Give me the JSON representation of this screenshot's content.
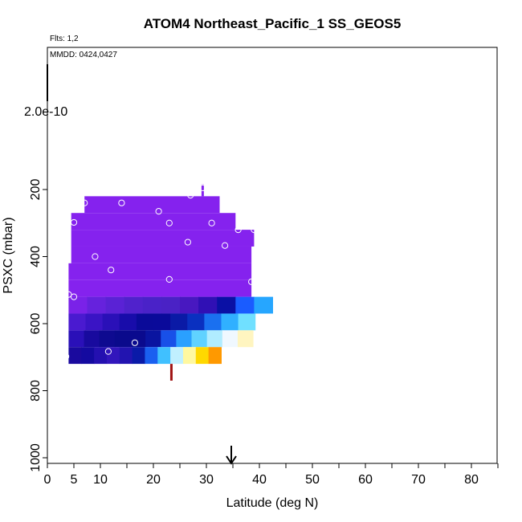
{
  "chart_data": {
    "type": "heatmap",
    "title": "ATOM4 Northeast_Pacific_1 SS_GEOS5",
    "flights_note": "Flts: 1,2",
    "dates_note": "MMDD: 0424,0427",
    "scale_label": "2.0e-10",
    "xlabel": "Latitude (deg N)",
    "ylabel": "PSXC (mbar)",
    "xlim": [
      0,
      85
    ],
    "ylim": [
      1010,
      0
    ],
    "x_ticks": [
      0,
      5,
      10,
      20,
      30,
      40,
      50,
      60,
      70,
      80
    ],
    "x_minor_ticks": [
      15,
      25,
      35,
      45,
      55,
      65,
      75,
      85
    ],
    "y_ticks": [
      200,
      400,
      600,
      800,
      1000
    ],
    "arrow_latitude": 34.7,
    "bands": [
      {
        "p_top": 220,
        "p_bot": 270,
        "lat_start": 7,
        "lat_step": 1,
        "colors": [
          "#8522ee"
        ],
        "lat_end": 32.5
      },
      {
        "p_top": 270,
        "p_bot": 320,
        "lat_start": 4.5,
        "lat_step": 1,
        "colors": [
          "#8522ee"
        ],
        "lat_end": 35.5
      },
      {
        "p_top": 320,
        "p_bot": 370,
        "lat_start": 4.5,
        "lat_step": 1,
        "colors": [
          "#8522ee"
        ],
        "lat_end": 39
      },
      {
        "p_top": 370,
        "p_bot": 420,
        "lat_start": 4.5,
        "lat_step": 1,
        "colors": [
          "#8522ee"
        ],
        "lat_end": 38.5
      },
      {
        "p_top": 420,
        "p_bot": 470,
        "lat_start": 4,
        "lat_step": 1,
        "colors": [
          "#8522ee"
        ],
        "lat_end": 38.5
      },
      {
        "p_top": 470,
        "p_bot": 520,
        "lat_start": 4,
        "lat_step": 1,
        "colors": [
          "#8522ee"
        ],
        "lat_end": 38.5
      },
      {
        "p_top": 520,
        "p_bot": 570,
        "lat_start": 4,
        "lat_step": 3.5,
        "colors": [
          "#7a22e8",
          "#6622dd",
          "#5a22d5",
          "#5022cc",
          "#4a22c8",
          "#4a22c5",
          "#4818c0",
          "#3010b5",
          "#0a10a5",
          "#1a5cff",
          "#26a6ff"
        ]
      },
      {
        "p_top": 570,
        "p_bot": 620,
        "lat_start": 4,
        "lat_step": 3.2,
        "colors": [
          "#4a1ad0",
          "#3a14c5",
          "#2a10b8",
          "#180caa",
          "#0a0a99",
          "#0a0a9a",
          "#0a1aa6",
          "#0a30c0",
          "#1a70f0",
          "#30b0ff",
          "#70e0ff"
        ]
      },
      {
        "p_top": 620,
        "p_bot": 670,
        "lat_start": 4,
        "lat_step": 2.9,
        "colors": [
          "#2a10b8",
          "#180a9e",
          "#0e0a90",
          "#0a0a8c",
          "#0a0a8e",
          "#0a14a0",
          "#1850e8",
          "#2aa0ff",
          "#60d2ff",
          "#b0ecff",
          "#f0f8ff",
          "#fff5c0"
        ]
      },
      {
        "p_top": 670,
        "p_bot": 720,
        "lat_start": 4,
        "lat_step": 2.4,
        "colors": [
          "#1a0a9e",
          "#140aa0",
          "#2410b0",
          "#3216bc",
          "#2214b0",
          "#0a1aa8",
          "#1a60f0",
          "#40c0ff",
          "#c0f0ff",
          "#fff8a0",
          "#ffd800",
          "#ff9900",
          "#f06010"
        ],
        "lat_end": 26.5
      }
    ],
    "spikes": [
      {
        "lat": 29.3,
        "p_top": 185,
        "p_bot": 220,
        "color": "#8522ee"
      },
      {
        "lat": 23.4,
        "p_top": 720,
        "p_bot": 770,
        "color": "#a01414"
      }
    ],
    "points": [
      {
        "lat": 7,
        "p": 240
      },
      {
        "lat": 14,
        "p": 240
      },
      {
        "lat": 27,
        "p": 217
      },
      {
        "lat": 29.3,
        "p": 195
      },
      {
        "lat": 5,
        "p": 298
      },
      {
        "lat": 21,
        "p": 265
      },
      {
        "lat": 23,
        "p": 300
      },
      {
        "lat": 31,
        "p": 300
      },
      {
        "lat": 36,
        "p": 320
      },
      {
        "lat": 39,
        "p": 320
      },
      {
        "lat": 26.5,
        "p": 357
      },
      {
        "lat": 33.5,
        "p": 367
      },
      {
        "lat": 9,
        "p": 400
      },
      {
        "lat": 12,
        "p": 440
      },
      {
        "lat": 23,
        "p": 468
      },
      {
        "lat": 38.5,
        "p": 475
      },
      {
        "lat": 4,
        "p": 513
      },
      {
        "lat": 5,
        "p": 520
      },
      {
        "lat": 16.5,
        "p": 657
      },
      {
        "lat": 11.5,
        "p": 683
      },
      {
        "lat": 3.5,
        "p": 698
      }
    ]
  }
}
